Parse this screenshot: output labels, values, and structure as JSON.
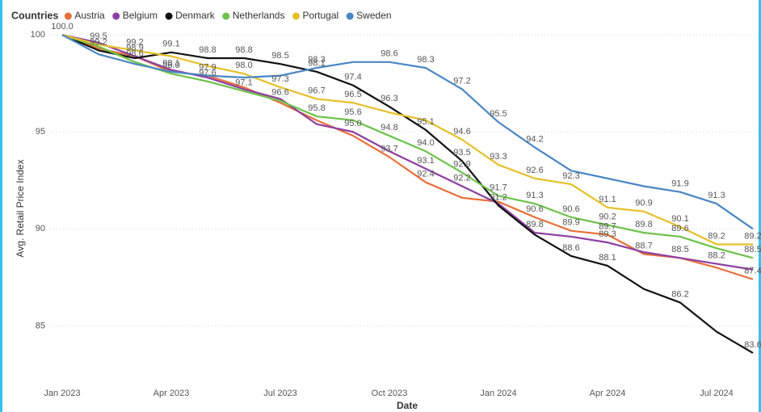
{
  "chart_data": {
    "type": "line",
    "legend_title": "Countries",
    "y_label": "Avg. Retail Price Index",
    "x_label": "Date",
    "categories": [
      "Jan 2023",
      null,
      null,
      "Apr 2023",
      null,
      null,
      "Jul 2023",
      null,
      null,
      "Oct 2023",
      null,
      null,
      "Jan 2024",
      null,
      null,
      "Apr 2024",
      null,
      null,
      "Jul 2024",
      null
    ],
    "ylim": [
      82.1,
      100.3
    ],
    "yticks": [
      85,
      90,
      95,
      100
    ],
    "grid": true,
    "legend": "top-left",
    "series": [
      {
        "name": "Austria",
        "color": "#e8703a",
        "values": [
          100.0,
          99.3,
          98.9,
          98.1,
          97.9,
          97.3,
          96.5,
          95.6,
          94.8,
          93.7,
          92.4,
          91.6,
          91.4,
          90.6,
          89.9,
          89.7,
          88.7,
          88.5,
          88.0,
          87.4
        ],
        "value_labels": [
          null,
          null,
          null,
          "98.1",
          "97.9",
          null,
          null,
          null,
          null,
          "93.7",
          "92.4",
          null,
          null,
          "90.6",
          "89.9",
          "89.7",
          "88.7",
          null,
          null,
          "87.4"
        ]
      },
      {
        "name": "Belgium",
        "color": "#8d3fa0",
        "values": [
          100.0,
          99.6,
          98.9,
          98.2,
          97.8,
          97.2,
          96.7,
          95.4,
          95.0,
          94.0,
          93.1,
          92.2,
          91.3,
          89.8,
          89.6,
          89.3,
          88.8,
          88.5,
          88.2,
          87.9
        ],
        "value_labels": [
          null,
          null,
          "98.9",
          null,
          null,
          null,
          null,
          null,
          "95.0",
          null,
          "93.1",
          "92.2",
          null,
          "89.8",
          null,
          "89.3",
          null,
          "88.5",
          "88.2",
          null
        ]
      },
      {
        "name": "Denmark",
        "color": "#111111",
        "values": [
          100.0,
          99.2,
          98.8,
          99.1,
          98.8,
          98.8,
          98.5,
          98.1,
          97.4,
          96.3,
          95.1,
          93.5,
          91.2,
          89.7,
          88.6,
          88.1,
          86.9,
          86.2,
          84.7,
          83.6
        ],
        "value_labels": [
          "100.0",
          "99.2",
          null,
          "99.1",
          "98.8",
          "98.8",
          "98.5",
          "98.1",
          "97.4",
          "96.3",
          "95.1",
          "93.5",
          "91.2",
          null,
          "88.6",
          "88.1",
          null,
          "86.2",
          null,
          "83.6"
        ]
      },
      {
        "name": "Netherlands",
        "color": "#6cc24a",
        "values": [
          100.0,
          99.4,
          98.6,
          98.0,
          97.6,
          97.1,
          96.6,
          95.8,
          95.6,
          94.8,
          94.0,
          92.9,
          91.7,
          91.3,
          90.6,
          90.2,
          89.8,
          89.6,
          89.0,
          88.5
        ],
        "value_labels": [
          null,
          null,
          "98.6",
          "98.0",
          "97.6",
          "97.1",
          "96.6",
          "95.8",
          "95.6",
          "94.8",
          "94.0",
          "92.9",
          "91.7",
          "91.3",
          "90.6",
          "90.2",
          "89.8",
          "89.6",
          null,
          "88.5"
        ]
      },
      {
        "name": "Portugal",
        "color": "#e6c029",
        "values": [
          100.0,
          99.5,
          99.2,
          98.9,
          98.4,
          98.0,
          97.3,
          96.7,
          96.5,
          96.0,
          95.6,
          94.6,
          93.3,
          92.6,
          92.3,
          91.1,
          90.9,
          90.1,
          89.2,
          89.2
        ],
        "value_labels": [
          null,
          "99.5",
          "99.2",
          null,
          null,
          "98.0",
          "97.3",
          "96.7",
          "96.5",
          null,
          null,
          "94.6",
          "93.3",
          "92.6",
          "92.3",
          "91.1",
          "90.9",
          "90.1",
          "89.2",
          "89.2"
        ]
      },
      {
        "name": "Sweden",
        "color": "#4a86c5",
        "values": [
          100.0,
          99.0,
          98.5,
          98.1,
          97.9,
          97.8,
          97.9,
          98.3,
          98.6,
          98.6,
          98.3,
          97.2,
          95.5,
          94.2,
          93.0,
          92.6,
          92.2,
          91.9,
          91.3,
          90.0
        ],
        "value_labels": [
          null,
          null,
          null,
          null,
          null,
          null,
          null,
          "98.3",
          null,
          "98.6",
          "98.3",
          "97.2",
          "95.5",
          "94.2",
          null,
          null,
          null,
          "91.9",
          "91.3",
          null
        ]
      }
    ]
  }
}
